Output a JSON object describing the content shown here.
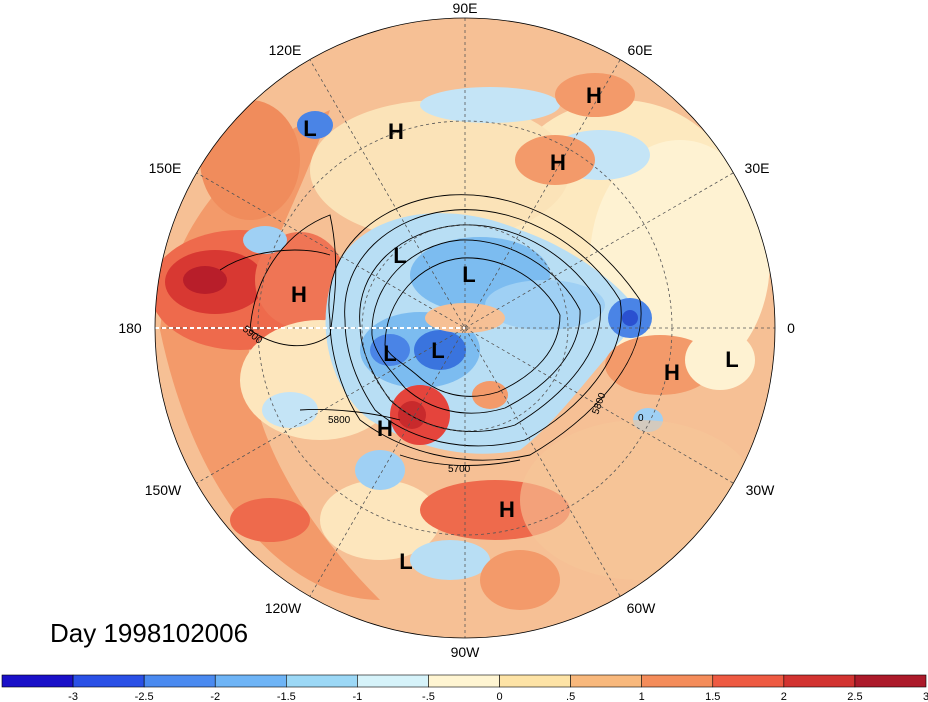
{
  "title_text": "Day 1998102006",
  "longitude_labels": [
    {
      "text": "90E"
    },
    {
      "text": "60E"
    },
    {
      "text": "30E"
    },
    {
      "text": "0"
    },
    {
      "text": "30W"
    },
    {
      "text": "60W"
    },
    {
      "text": "90W"
    },
    {
      "text": "120W"
    },
    {
      "text": "150W"
    },
    {
      "text": "180"
    },
    {
      "text": "150E"
    },
    {
      "text": "120E"
    }
  ],
  "pressure_systems": [
    {
      "type": "H"
    },
    {
      "type": "L"
    },
    {
      "type": "H"
    },
    {
      "type": "H"
    },
    {
      "type": "L"
    },
    {
      "type": "H"
    },
    {
      "type": "L"
    },
    {
      "type": "L"
    },
    {
      "type": "L"
    },
    {
      "type": "H"
    },
    {
      "type": "H"
    },
    {
      "type": "H"
    },
    {
      "type": "L"
    },
    {
      "type": "L"
    }
  ],
  "contour_labels": [
    "5900",
    "5800",
    "5700",
    "5800",
    "0"
  ],
  "colorbar": {
    "colors": [
      "#1a10c8",
      "#2a50e6",
      "#4a8af0",
      "#6eb4f6",
      "#9cd8f6",
      "#d6f3fa",
      "#fff5d2",
      "#fde3a6",
      "#f8b87c",
      "#f48c5a",
      "#ee5a42",
      "#d23330",
      "#ac1a2a"
    ],
    "tick_labels": [
      "-3",
      "-2.5",
      "-2",
      "-1.5",
      "-1",
      "-.5",
      "0",
      ".5",
      "1",
      "1.5",
      "2",
      "2.5",
      "3"
    ]
  },
  "colors": {
    "neutral": "#fdf3d4",
    "warm": "#f5a46f",
    "hot": "#e5443c",
    "cool": "#acd6f2",
    "cold": "#3f7fe0",
    "ocean_bg": "#f7c79a"
  }
}
